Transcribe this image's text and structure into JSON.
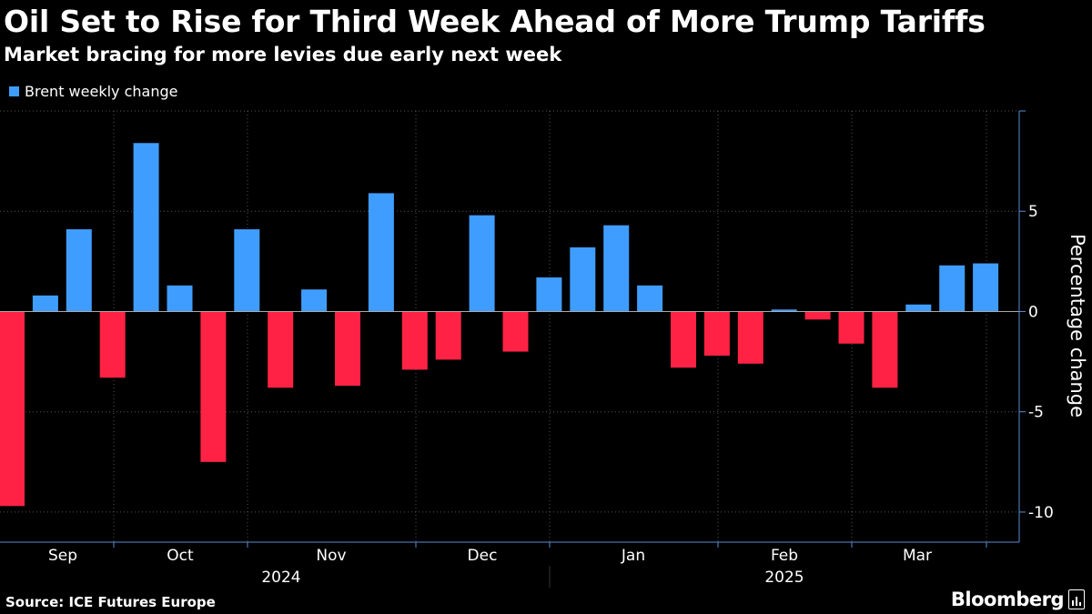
{
  "title": "Oil Set to Rise for Third Week Ahead of More Trump Tariffs",
  "subtitle": "Market bracing for more levies due early next week",
  "source": "Source: ICE Futures Europe",
  "brand": "Bloomberg",
  "colors": {
    "positive": "#3f9dff",
    "negative": "#ff2244",
    "grid": "#555555",
    "axis": "#5b8dd6"
  },
  "chart_data": {
    "type": "bar",
    "title": "Oil Set to Rise for Third Week Ahead of More Trump Tariffs",
    "subtitle": "Market bracing for more levies due early next week",
    "legend": [
      {
        "name": "Brent weekly change",
        "color": "#3f9dff"
      }
    ],
    "xlabel": "",
    "ylabel": "Percentage change",
    "ylim": [
      -11.5,
      10
    ],
    "yticks": [
      -10,
      -5,
      0,
      5
    ],
    "ytick_labels": [
      "-10",
      "-5",
      "0",
      "5"
    ],
    "month_labels": [
      "Sep",
      "Oct",
      "Nov",
      "Dec",
      "Jan",
      "Feb",
      "Mar"
    ],
    "year_labels": [
      "2024",
      "2025"
    ],
    "series": [
      {
        "name": "Brent weekly change",
        "values": [
          -9.7,
          0.8,
          4.1,
          -3.3,
          8.4,
          1.3,
          -7.5,
          4.1,
          -3.8,
          1.1,
          -3.7,
          5.9,
          -2.9,
          -2.4,
          4.8,
          -2.0,
          1.7,
          3.2,
          4.3,
          1.3,
          -2.8,
          -2.2,
          -2.6,
          0.1,
          -0.4,
          -1.6,
          -3.8,
          0.35,
          2.3,
          2.4
        ]
      }
    ]
  }
}
